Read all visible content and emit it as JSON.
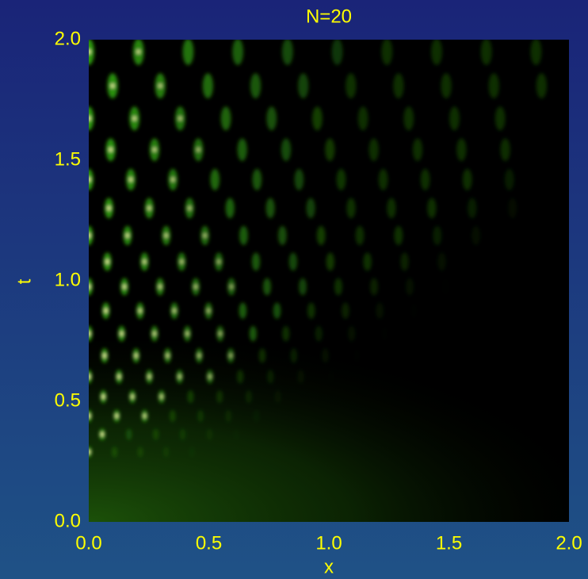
{
  "chart_data": {
    "type": "heatmap",
    "title": "N=20",
    "x_label": "x",
    "y_label": "t",
    "xlim": [
      0,
      2
    ],
    "ylim": [
      0,
      2
    ],
    "xticks": [
      {
        "value": 0,
        "label": "0.0"
      },
      {
        "value": 0.5,
        "label": "0.5"
      },
      {
        "value": 1,
        "label": "1.0"
      },
      {
        "value": 1.5,
        "label": "1.5"
      },
      {
        "value": 2,
        "label": "2.0"
      }
    ],
    "yticks": [
      {
        "value": 0,
        "label": "0.0"
      },
      {
        "value": 0.5,
        "label": "0.5"
      },
      {
        "value": 1,
        "label": "1.0"
      },
      {
        "value": 1.5,
        "label": "1.5"
      },
      {
        "value": 2,
        "label": "2.0"
      }
    ]
  }
}
